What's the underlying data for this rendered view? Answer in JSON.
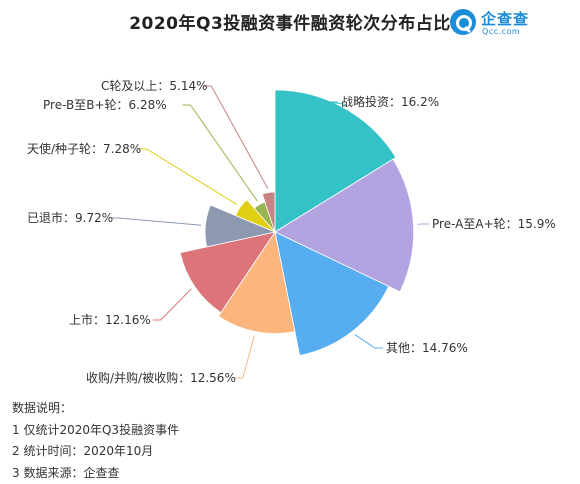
{
  "header": {
    "title": "2020年Q3投融资事件融资轮次分布占比",
    "logo_name": "企查查",
    "logo_domain": "Qcc.com"
  },
  "chart_data": {
    "type": "pie",
    "variant": "rose",
    "title": "2020年Q3投融资事件融资轮次分布占比",
    "unit": "%",
    "slices": [
      {
        "label": "战略投资",
        "value": 16.2,
        "color": "#33c3c6"
      },
      {
        "label": "Pre-A至A+轮",
        "value": 15.9,
        "color": "#b3a3e0"
      },
      {
        "label": "其他",
        "value": 14.76,
        "color": "#56adf0"
      },
      {
        "label": "收购/并购/被收购",
        "value": 12.56,
        "color": "#fdb57e"
      },
      {
        "label": "上市",
        "value": 12.16,
        "color": "#dc7479"
      },
      {
        "label": "已退市",
        "value": 9.72,
        "color": "#8d99b1"
      },
      {
        "label": "天使/种子轮",
        "value": 7.28,
        "color": "#e0cf13"
      },
      {
        "label": "Pre-B至B+轮",
        "value": 6.28,
        "color": "#99b552"
      },
      {
        "label": "C轮及以上",
        "value": 5.14,
        "color": "#c88484"
      }
    ],
    "labels": [
      "战略投资：16.2%",
      "Pre-A至A+轮：15.9%",
      "其他：14.76%",
      "收购/并购/被收购：12.56%",
      "上市：12.16%",
      "已退市：9.72%",
      "天使/种子轮：7.28%",
      "Pre-B至B+轮：6.28%",
      "C轮及以上：5.14%"
    ]
  },
  "notes": {
    "heading": "数据说明：",
    "line1": "1 仅统计2020年Q3投融资事件",
    "line2": "2 统计时间：2020年10月",
    "line3": "3 数据来源：企查查"
  }
}
